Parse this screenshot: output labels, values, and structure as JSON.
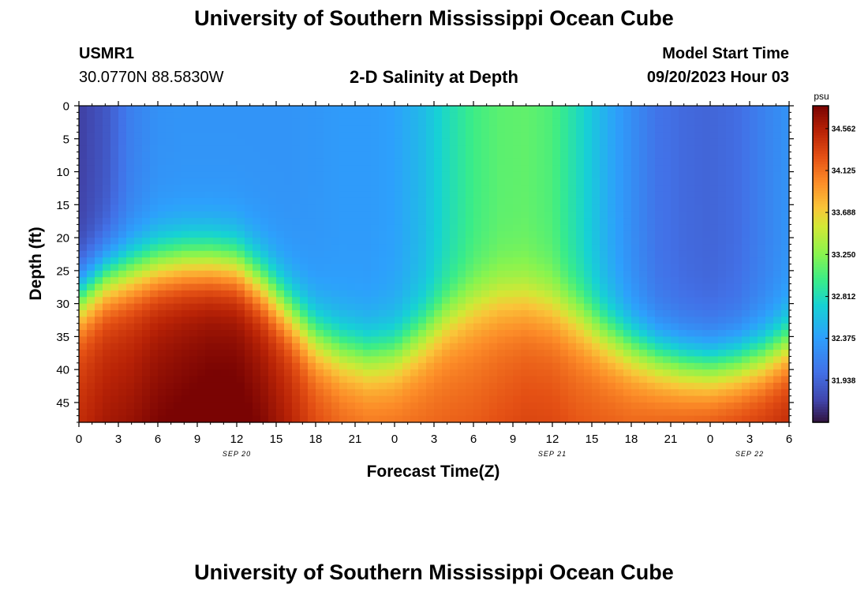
{
  "header": {
    "title": "University of Southern Mississippi Ocean Cube",
    "station_id": "USMR1",
    "station_coords": "30.0770N  88.5830W",
    "plot_subtitle": "2-D Salinity at Depth",
    "model_start_label": "Model Start Time",
    "model_start_value": "09/20/2023 Hour 03"
  },
  "footer": {
    "title": "University of Southern Mississippi Ocean Cube"
  },
  "chart_data": {
    "type": "heatmap",
    "title": "2-D Salinity at Depth",
    "xlabel": "Forecast Time(Z)",
    "ylabel": "Depth (ft)",
    "x_hours_range": [
      0,
      54
    ],
    "ylim": [
      0,
      48
    ],
    "y_reversed": true,
    "x_tick_labels": [
      "0",
      "3",
      "6",
      "9",
      "12",
      "15",
      "18",
      "21",
      "0",
      "3",
      "6",
      "9",
      "12",
      "15",
      "18",
      "21",
      "0",
      "3",
      "6"
    ],
    "x_tick_hours": [
      0,
      3,
      6,
      9,
      12,
      15,
      18,
      21,
      24,
      27,
      30,
      33,
      36,
      39,
      42,
      45,
      48,
      51,
      54
    ],
    "date_labels": [
      "SEP 20",
      "SEP 21",
      "SEP 22"
    ],
    "date_label_hours": [
      12,
      36,
      51
    ],
    "y_ticks": [
      0,
      5,
      10,
      15,
      20,
      25,
      30,
      35,
      40,
      45
    ],
    "colorbar": {
      "units": "psu",
      "min": 31.5,
      "max": 34.8,
      "tick_labels": [
        "34.562",
        "34.125",
        "33.688",
        "33.250",
        "32.812",
        "32.375",
        "31.938"
      ],
      "tick_values": [
        34.562,
        34.125,
        33.688,
        33.25,
        32.812,
        32.375,
        31.938
      ]
    },
    "columns": [
      {
        "hour": 0,
        "surface": 31.7,
        "deep": 34.3,
        "interface_depth": 29
      },
      {
        "hour": 2,
        "surface": 31.85,
        "deep": 34.4,
        "interface_depth": 26
      },
      {
        "hour": 4,
        "surface": 32.15,
        "deep": 34.45,
        "interface_depth": 25
      },
      {
        "hour": 6,
        "surface": 32.28,
        "deep": 34.55,
        "interface_depth": 24
      },
      {
        "hour": 8,
        "surface": 32.3,
        "deep": 34.6,
        "interface_depth": 23.5
      },
      {
        "hour": 10,
        "surface": 32.3,
        "deep": 34.65,
        "interface_depth": 23.5
      },
      {
        "hour": 12,
        "surface": 32.3,
        "deep": 34.65,
        "interface_depth": 24
      },
      {
        "hour": 14,
        "surface": 32.3,
        "deep": 34.55,
        "interface_depth": 27
      },
      {
        "hour": 16,
        "surface": 32.3,
        "deep": 34.4,
        "interface_depth": 31
      },
      {
        "hour": 18,
        "surface": 32.32,
        "deep": 34.2,
        "interface_depth": 35
      },
      {
        "hour": 20,
        "surface": 32.35,
        "deep": 34.1,
        "interface_depth": 37
      },
      {
        "hour": 22,
        "surface": 32.35,
        "deep": 34.05,
        "interface_depth": 38
      },
      {
        "hour": 24,
        "surface": 32.4,
        "deep": 34.05,
        "interface_depth": 37.5
      },
      {
        "hour": 26,
        "surface": 32.55,
        "deep": 34.05,
        "interface_depth": 35
      },
      {
        "hour": 28,
        "surface": 32.8,
        "deep": 34.05,
        "interface_depth": 32
      },
      {
        "hour": 30,
        "surface": 33.0,
        "deep": 34.05,
        "interface_depth": 30
      },
      {
        "hour": 32,
        "surface": 33.1,
        "deep": 34.1,
        "interface_depth": 29
      },
      {
        "hour": 34,
        "surface": 33.12,
        "deep": 34.15,
        "interface_depth": 29
      },
      {
        "hour": 36,
        "surface": 33.05,
        "deep": 34.15,
        "interface_depth": 30
      },
      {
        "hour": 38,
        "surface": 32.8,
        "deep": 34.1,
        "interface_depth": 32
      },
      {
        "hour": 40,
        "surface": 32.5,
        "deep": 34.1,
        "interface_depth": 34.5
      },
      {
        "hour": 42,
        "surface": 32.25,
        "deep": 34.1,
        "interface_depth": 36.5
      },
      {
        "hour": 44,
        "surface": 32.05,
        "deep": 34.15,
        "interface_depth": 38
      },
      {
        "hour": 46,
        "surface": 31.98,
        "deep": 34.2,
        "interface_depth": 39
      },
      {
        "hour": 48,
        "surface": 31.95,
        "deep": 34.25,
        "interface_depth": 39.5
      },
      {
        "hour": 50,
        "surface": 32.0,
        "deep": 34.3,
        "interface_depth": 39
      },
      {
        "hour": 52,
        "surface": 32.15,
        "deep": 34.35,
        "interface_depth": 38
      },
      {
        "hour": 54,
        "surface": 32.3,
        "deep": 34.4,
        "interface_depth": 36
      }
    ]
  }
}
